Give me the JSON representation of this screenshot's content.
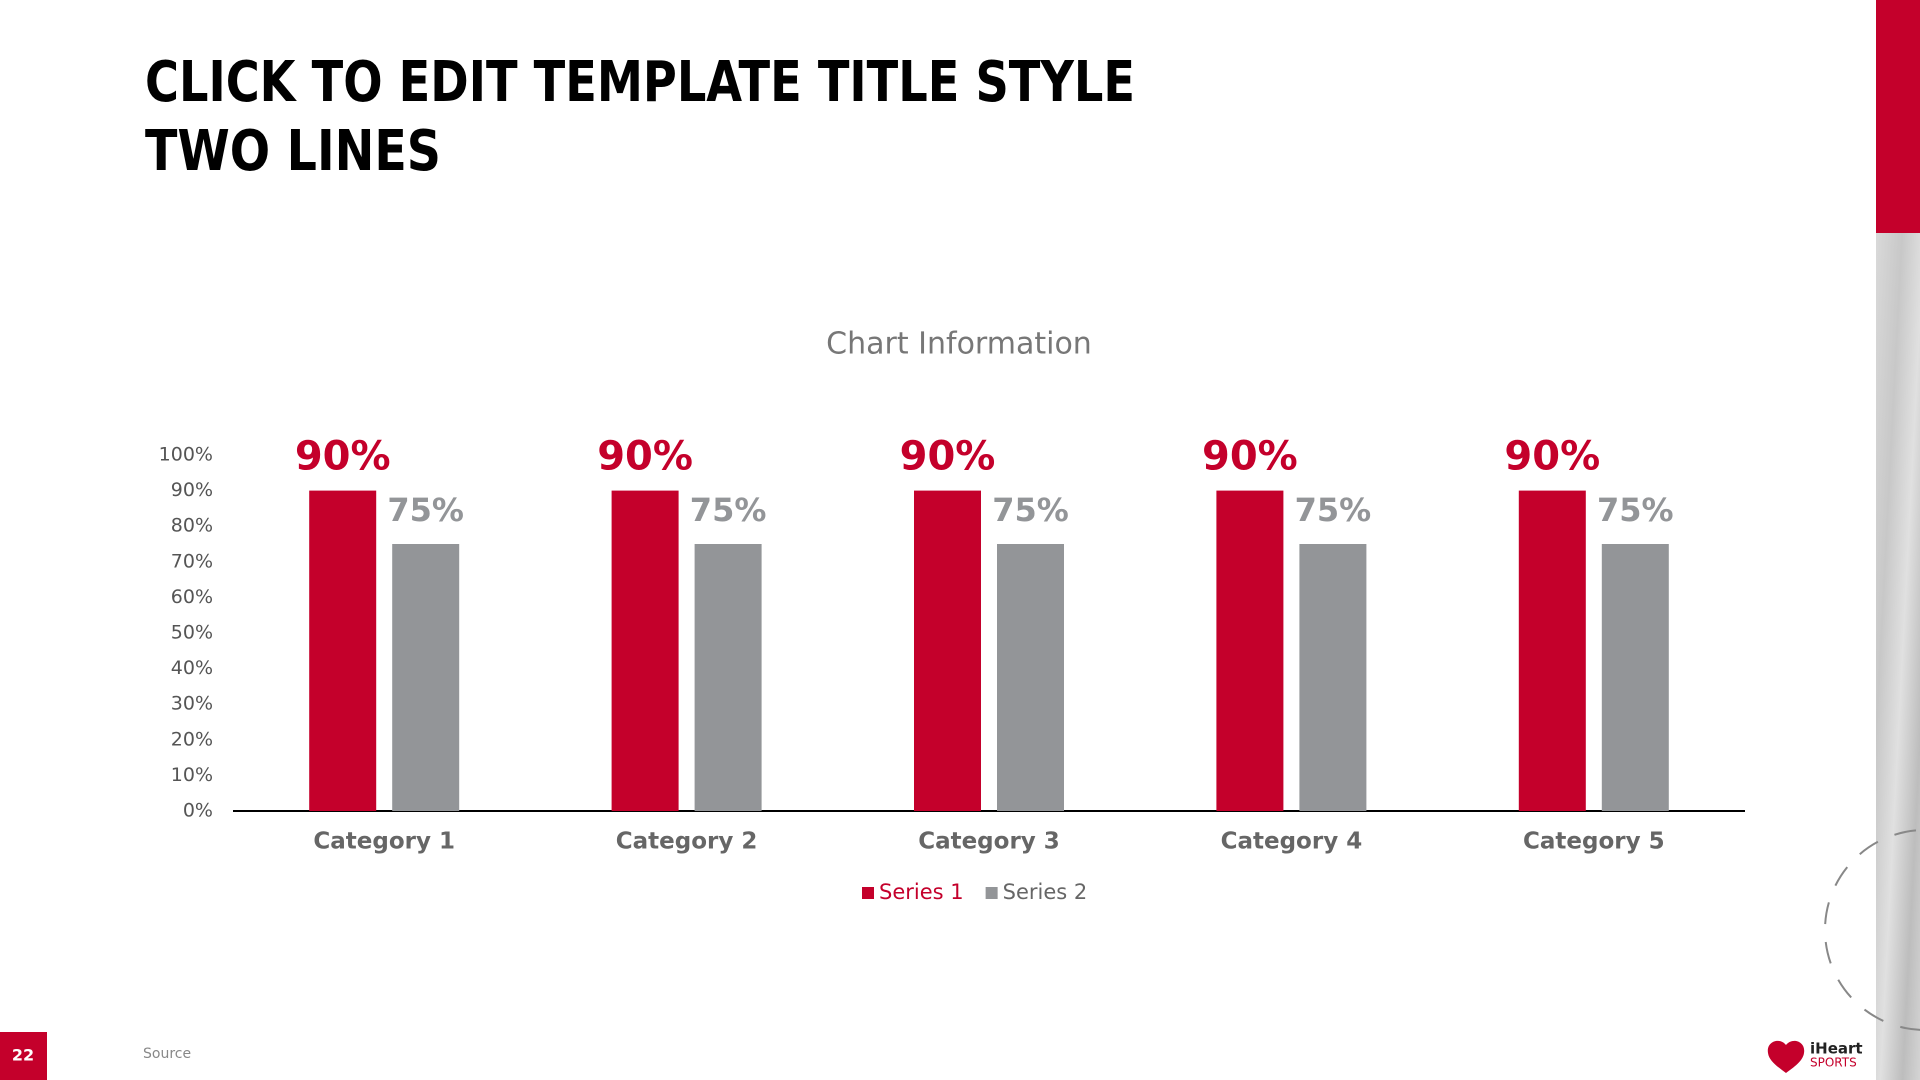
{
  "slide": {
    "title_lines": [
      "CLICK TO EDIT TEMPLATE TITLE STYLE",
      "TWO LINES"
    ],
    "source": "Source",
    "page_number": "22",
    "logo": [
      "iHeart",
      "SPORTS"
    ]
  },
  "chart_data": {
    "type": "bar",
    "title": "Chart Information",
    "categories": [
      "Category 1",
      "Category 2",
      "Category 3",
      "Category 4",
      "Category 5"
    ],
    "series": [
      {
        "name": "Series 1",
        "color": "#c4002b",
        "values": [
          90,
          90,
          90,
          90,
          90
        ],
        "value_labels": [
          "90%",
          "90%",
          "90%",
          "90%",
          "90%"
        ]
      },
      {
        "name": "Series 2",
        "color": "#939598",
        "values": [
          75,
          75,
          75,
          75,
          75
        ],
        "value_labels": [
          "75%",
          "75%",
          "75%",
          "75%",
          "75%"
        ]
      }
    ],
    "ylim": [
      0,
      100
    ],
    "yticks": [
      {
        "value": 0,
        "label": "0%"
      },
      {
        "value": 10,
        "label": "10%"
      },
      {
        "value": 20,
        "label": "20%"
      },
      {
        "value": 30,
        "label": "30%"
      },
      {
        "value": 40,
        "label": "40%"
      },
      {
        "value": 50,
        "label": "50%"
      },
      {
        "value": 60,
        "label": "60%"
      },
      {
        "value": 70,
        "label": "70%"
      },
      {
        "value": 80,
        "label": "80%"
      },
      {
        "value": 90,
        "label": "90%"
      },
      {
        "value": 100,
        "label": "100%"
      }
    ],
    "grid": false,
    "legend": "bottom"
  }
}
